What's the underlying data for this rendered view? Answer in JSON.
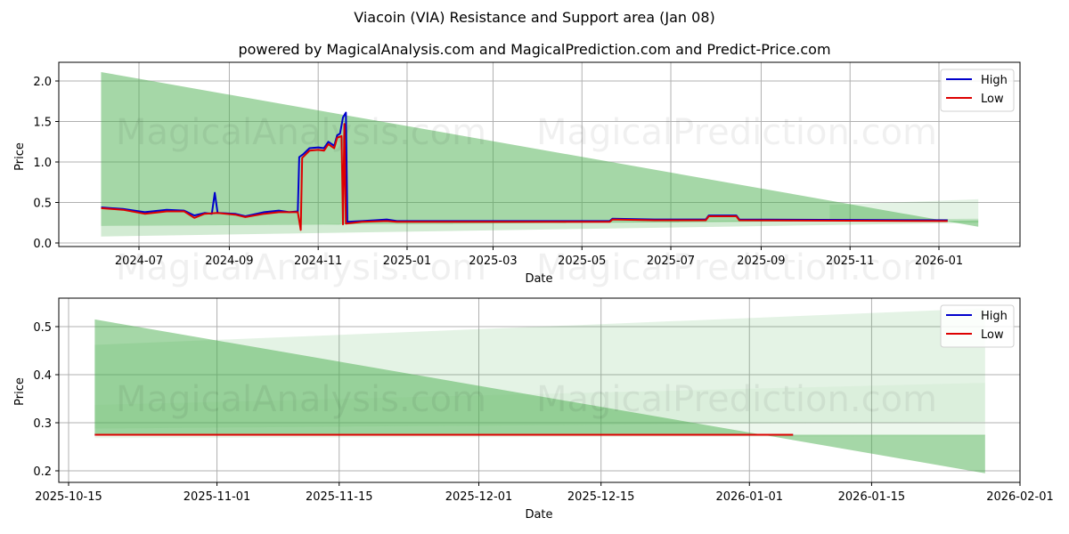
{
  "header": {
    "title": "Viacoin (VIA) Resistance and Support area (Jan 08)",
    "subtitle": "powered by MagicalAnalysis.com and MagicalPrediction.com and Predict-Price.com"
  },
  "watermarks": [
    "MagicalAnalysis.com",
    "MagicalPrediction.com"
  ],
  "colors": {
    "high": "#0000cc",
    "low": "#dd0000",
    "band": "#4caf50",
    "grid": "#b0b0b0"
  },
  "chart_data": [
    {
      "type": "line",
      "title": "",
      "xlabel": "Date",
      "ylabel": "Price",
      "ylim": [
        -0.03,
        2.2
      ],
      "yticks": [
        "0.0",
        "0.5",
        "1.0",
        "1.5",
        "2.0"
      ],
      "xticks": [
        "2024-07",
        "2024-09",
        "2024-11",
        "2025-01",
        "2025-03",
        "2025-05",
        "2025-07",
        "2025-09",
        "2025-11",
        "2026-01"
      ],
      "grid": true,
      "legend_position": "upper right",
      "legend": [
        "High",
        "Low"
      ],
      "series": [
        {
          "name": "High",
          "points": [
            [
              "2024-06-05",
              0.44
            ],
            [
              "2024-06-20",
              0.42
            ],
            [
              "2024-07-05",
              0.38
            ],
            [
              "2024-07-20",
              0.41
            ],
            [
              "2024-08-01",
              0.4
            ],
            [
              "2024-08-08",
              0.34
            ],
            [
              "2024-08-15",
              0.37
            ],
            [
              "2024-08-20",
              0.36
            ],
            [
              "2024-08-22",
              0.62
            ],
            [
              "2024-08-24",
              0.37
            ],
            [
              "2024-09-05",
              0.36
            ],
            [
              "2024-09-12",
              0.33
            ],
            [
              "2024-09-25",
              0.38
            ],
            [
              "2024-10-05",
              0.4
            ],
            [
              "2024-10-12",
              0.38
            ],
            [
              "2024-10-18",
              0.39
            ],
            [
              "2024-10-19",
              1.06
            ],
            [
              "2024-10-22",
              1.1
            ],
            [
              "2024-10-26",
              1.17
            ],
            [
              "2024-11-01",
              1.18
            ],
            [
              "2024-11-05",
              1.17
            ],
            [
              "2024-11-08",
              1.25
            ],
            [
              "2024-11-12",
              1.2
            ],
            [
              "2024-11-14",
              1.33
            ],
            [
              "2024-11-16",
              1.35
            ],
            [
              "2024-11-18",
              1.55
            ],
            [
              "2024-11-20",
              1.61
            ],
            [
              "2024-11-21",
              0.26
            ],
            [
              "2024-12-01",
              0.27
            ],
            [
              "2024-12-10",
              0.28
            ],
            [
              "2024-12-18",
              0.29
            ],
            [
              "2024-12-25",
              0.27
            ],
            [
              "2025-05-20",
              0.27
            ],
            [
              "2025-05-22",
              0.3
            ],
            [
              "2025-06-20",
              0.29
            ],
            [
              "2025-07-25",
              0.29
            ],
            [
              "2025-07-27",
              0.34
            ],
            [
              "2025-08-15",
              0.34
            ],
            [
              "2025-08-17",
              0.29
            ],
            [
              "2026-01-07",
              0.28
            ]
          ]
        },
        {
          "name": "Low",
          "points": [
            [
              "2024-06-05",
              0.43
            ],
            [
              "2024-06-20",
              0.41
            ],
            [
              "2024-07-05",
              0.36
            ],
            [
              "2024-07-20",
              0.39
            ],
            [
              "2024-08-01",
              0.39
            ],
            [
              "2024-08-08",
              0.31
            ],
            [
              "2024-08-15",
              0.36
            ],
            [
              "2024-08-24",
              0.37
            ],
            [
              "2024-09-05",
              0.35
            ],
            [
              "2024-09-12",
              0.32
            ],
            [
              "2024-09-25",
              0.36
            ],
            [
              "2024-10-05",
              0.38
            ],
            [
              "2024-10-18",
              0.38
            ],
            [
              "2024-10-20",
              0.16
            ],
            [
              "2024-10-21",
              1.05
            ],
            [
              "2024-10-26",
              1.14
            ],
            [
              "2024-11-01",
              1.15
            ],
            [
              "2024-11-05",
              1.14
            ],
            [
              "2024-11-08",
              1.22
            ],
            [
              "2024-11-12",
              1.17
            ],
            [
              "2024-11-14",
              1.3
            ],
            [
              "2024-11-17",
              1.32
            ],
            [
              "2024-11-18",
              0.23
            ],
            [
              "2024-11-19",
              1.47
            ],
            [
              "2024-11-20",
              0.24
            ],
            [
              "2024-12-01",
              0.26
            ],
            [
              "2024-12-18",
              0.27
            ],
            [
              "2024-12-25",
              0.26
            ],
            [
              "2025-05-20",
              0.26
            ],
            [
              "2025-05-22",
              0.29
            ],
            [
              "2025-06-20",
              0.28
            ],
            [
              "2025-07-25",
              0.28
            ],
            [
              "2025-07-27",
              0.33
            ],
            [
              "2025-08-15",
              0.33
            ],
            [
              "2025-08-17",
              0.28
            ],
            [
              "2026-01-07",
              0.27
            ]
          ]
        }
      ],
      "bands": [
        {
          "name": "resistance-support-main",
          "x": [
            "2024-06-05",
            "2026-01-28"
          ],
          "upper": [
            2.11,
            0.2
          ],
          "lower": [
            0.21,
            0.28
          ],
          "opacity": 0.5
        },
        {
          "name": "support-band-low",
          "x": [
            "2024-06-05",
            "2026-01-28"
          ],
          "upper": [
            0.21,
            0.3
          ],
          "lower": [
            0.08,
            0.25
          ],
          "opacity": 0.25
        },
        {
          "name": "resistance-band-right",
          "x": [
            "2025-10-18",
            "2026-01-28"
          ],
          "upper": [
            0.47,
            0.54
          ],
          "lower": [
            0.27,
            0.29
          ],
          "opacity": 0.15
        }
      ]
    },
    {
      "type": "line",
      "title": "",
      "xlabel": "Date",
      "ylabel": "Price",
      "ylim": [
        0.177,
        0.558
      ],
      "yticks": [
        "0.2",
        "0.3",
        "0.4",
        "0.5"
      ],
      "xticks": [
        "2025-10-15",
        "2025-11-01",
        "2025-11-15",
        "2025-12-01",
        "2025-12-15",
        "2026-01-01",
        "2026-01-15",
        "2026-02-01"
      ],
      "grid": true,
      "legend_position": "upper right",
      "legend": [
        "High",
        "Low"
      ],
      "series": [
        {
          "name": "High",
          "points": [
            [
              "2025-10-18",
              0.275
            ],
            [
              "2026-01-06",
              0.275
            ]
          ]
        },
        {
          "name": "Low",
          "points": [
            [
              "2025-10-18",
              0.275
            ],
            [
              "2026-01-06",
              0.275
            ]
          ]
        }
      ],
      "bands": [
        {
          "name": "main-descending",
          "x": [
            "2025-10-18",
            "2026-01-28"
          ],
          "upper": [
            0.515,
            0.195
          ],
          "lower": [
            0.275,
            0.275
          ],
          "opacity": 0.5
        },
        {
          "name": "upper-resistance",
          "x": [
            "2025-10-18",
            "2026-01-28"
          ],
          "upper": [
            0.462,
            0.538
          ],
          "lower": [
            0.337,
            0.383
          ],
          "opacity": 0.15
        },
        {
          "name": "mid-band",
          "x": [
            "2025-10-18",
            "2026-01-28"
          ],
          "upper": [
            0.337,
            0.383
          ],
          "lower": [
            0.288,
            0.302
          ],
          "opacity": 0.2
        },
        {
          "name": "lower-band",
          "x": [
            "2025-10-18",
            "2026-01-28"
          ],
          "upper": [
            0.288,
            0.302
          ],
          "lower": [
            0.268,
            0.272
          ],
          "opacity": 0.1
        }
      ]
    }
  ]
}
